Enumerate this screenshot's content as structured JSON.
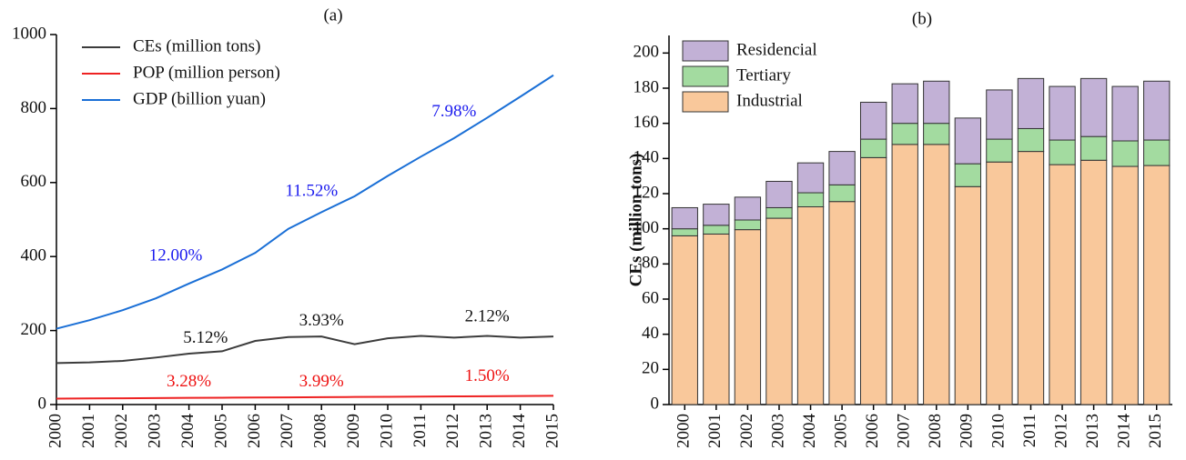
{
  "chart_data": [
    {
      "type": "line",
      "title": "(a)",
      "categories": [
        "2000",
        "2001",
        "2002",
        "2003",
        "2004",
        "2005",
        "2006",
        "2007",
        "2008",
        "2009",
        "2010",
        "2011",
        "2012",
        "2013",
        "2014",
        "2015"
      ],
      "ylim": [
        0,
        1000
      ],
      "yticks": [
        0,
        200,
        400,
        600,
        800,
        1000
      ],
      "series": [
        {
          "name": "CEs (million tons)",
          "color": "#3c3c3c",
          "values": [
            112,
            114,
            118,
            127,
            137.5,
            144,
            172,
            182.5,
            184,
            163,
            179,
            185.5,
            181,
            185.5,
            181,
            184
          ]
        },
        {
          "name": "POP (million person)",
          "color": "#ee2222",
          "values": [
            16,
            16.5,
            17,
            17.5,
            18,
            18.5,
            19,
            19.5,
            20,
            20.5,
            21,
            21.5,
            22,
            22.5,
            23,
            23.5
          ]
        },
        {
          "name": "GDP (billion yuan)",
          "color": "#1a6fd6",
          "values": [
            205,
            228,
            255,
            287,
            327,
            365,
            410,
            475,
            520,
            563,
            618,
            670,
            720,
            775,
            832,
            890
          ]
        }
      ],
      "annotations": [
        {
          "text": "12.00%",
          "color": "#1a1aee"
        },
        {
          "text": "11.52%",
          "color": "#1a1aee"
        },
        {
          "text": "7.98%",
          "color": "#1a1aee"
        },
        {
          "text": "5.12%",
          "color": "#111111"
        },
        {
          "text": "3.93%",
          "color": "#111111"
        },
        {
          "text": "2.12%",
          "color": "#111111"
        },
        {
          "text": "3.28%",
          "color": "#ee1111"
        },
        {
          "text": "3.99%",
          "color": "#ee1111"
        },
        {
          "text": "1.50%",
          "color": "#ee1111"
        }
      ]
    },
    {
      "type": "stacked_bar",
      "title": "(b)",
      "ylabel": "CEs (million tons)",
      "categories": [
        "2000",
        "2001",
        "2002",
        "2003",
        "2004",
        "2005",
        "2006",
        "2007",
        "2008",
        "2009",
        "2010",
        "2011",
        "2012",
        "2013",
        "2014",
        "2015"
      ],
      "ylim": [
        0,
        210
      ],
      "yticks": [
        0,
        20,
        40,
        60,
        80,
        100,
        120,
        140,
        160,
        180,
        200
      ],
      "series": [
        {
          "name": "Industrial",
          "color": "#f9c89b",
          "values": [
            96,
            97,
            99.5,
            106,
            112.5,
            115.5,
            140.5,
            148,
            148,
            124,
            138,
            144,
            136.5,
            139,
            135.5,
            136
          ]
        },
        {
          "name": "Tertiary",
          "color": "#a3dba0",
          "values": [
            4,
            5,
            5.5,
            6,
            8,
            9.5,
            10.5,
            12,
            12,
            13,
            13,
            13,
            14,
            13.5,
            14.5,
            14.5
          ]
        },
        {
          "name": "Residencial",
          "color": "#c2b1d6",
          "values": [
            12,
            12,
            13,
            15,
            17,
            19,
            21,
            22.5,
            24,
            26,
            28,
            28.5,
            30.5,
            33,
            31,
            33.5
          ]
        }
      ]
    }
  ]
}
